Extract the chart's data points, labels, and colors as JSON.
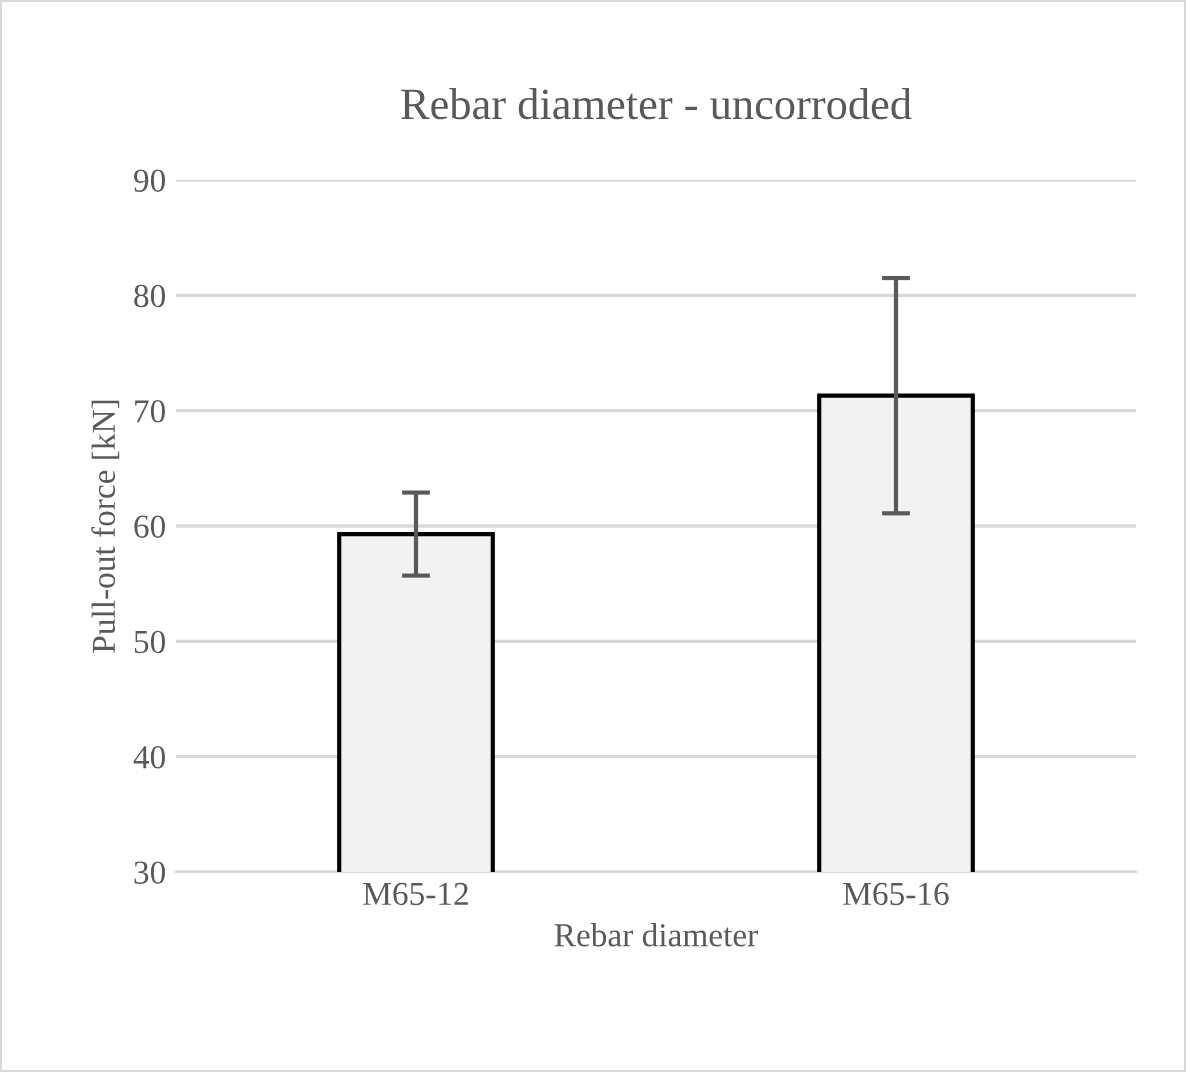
{
  "chart_data": {
    "type": "bar",
    "title": "Rebar diameter - uncorroded",
    "xlabel": "Rebar diameter",
    "ylabel": "Pull-out force [kN]",
    "categories": [
      "M65-12",
      "M65-16"
    ],
    "values": [
      59.3,
      71.3
    ],
    "errors": [
      3.6,
      10.2
    ],
    "color": "#f2f2f2",
    "ylim": [
      30,
      90
    ],
    "yticks": [
      30,
      40,
      50,
      60,
      70,
      80,
      90
    ],
    "grid": "y"
  }
}
